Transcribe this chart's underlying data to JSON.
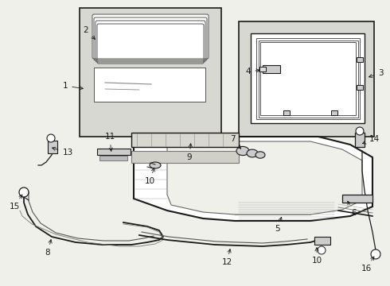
{
  "bg_color": "#f0f0eb",
  "line_color": "#1a1a1a",
  "box_bg": "#e8e8e2",
  "box_stipple": "#d8d8d2",
  "part_fill": "#d0d0c8",
  "label_fs": 7.5
}
